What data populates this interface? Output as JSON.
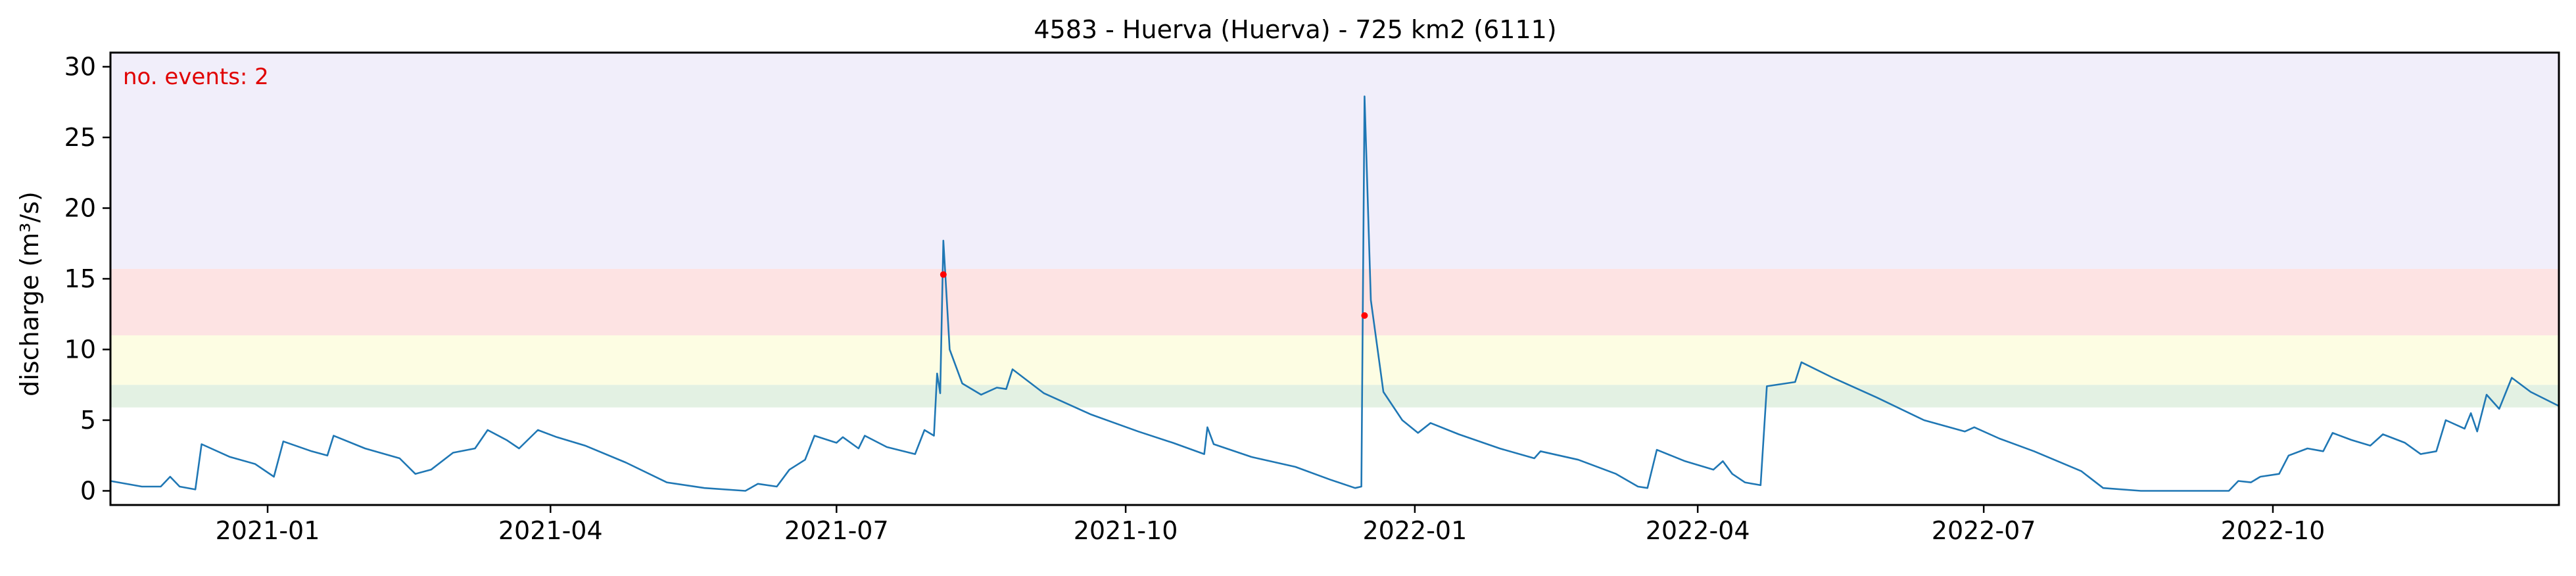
{
  "chart_data": {
    "type": "line",
    "title": "4583 - Huerva (Huerva) - 725 km2 (6111)",
    "xlabel": "",
    "ylabel": "discharge (m³/s)",
    "annotation": "no. events: 2",
    "xlim": [
      "2020-11-12",
      "2022-12-31"
    ],
    "ylim": [
      -1,
      31
    ],
    "x_ticks": [
      "2021-01-01",
      "2021-04-01",
      "2021-07-01",
      "2021-10-01",
      "2022-01-01",
      "2022-04-01",
      "2022-07-01",
      "2022-10-01"
    ],
    "x_tick_labels": [
      "2021-01",
      "2021-04",
      "2021-07",
      "2021-10",
      "2022-01",
      "2022-04",
      "2022-07",
      "2022-10"
    ],
    "y_ticks": [
      0,
      5,
      10,
      15,
      20,
      25,
      30
    ],
    "y_tick_labels": [
      "0",
      "5",
      "10",
      "15",
      "20",
      "25",
      "30"
    ],
    "grid": false,
    "threshold_bands": [
      {
        "from": 5.9,
        "to": 7.5,
        "color": "#e3f1e3"
      },
      {
        "from": 7.5,
        "to": 11.0,
        "color": "#fdfde3"
      },
      {
        "from": 11.0,
        "to": 15.7,
        "color": "#fde3e3"
      },
      {
        "from": 15.7,
        "to": 31,
        "color": "#f1eefa"
      }
    ],
    "series": [
      {
        "color": "#1f77b4",
        "points": [
          [
            "2020-11-12",
            0.7
          ],
          [
            "2020-11-22",
            0.3
          ],
          [
            "2020-11-28",
            0.3
          ],
          [
            "2020-12-01",
            1.0
          ],
          [
            "2020-12-04",
            0.3
          ],
          [
            "2020-12-09",
            0.1
          ],
          [
            "2020-12-11",
            3.3
          ],
          [
            "2020-12-20",
            2.4
          ],
          [
            "2020-12-28",
            1.9
          ],
          [
            "2021-01-03",
            1.0
          ],
          [
            "2021-01-06",
            3.5
          ],
          [
            "2021-01-15",
            2.8
          ],
          [
            "2021-01-20",
            2.5
          ],
          [
            "2021-01-22",
            3.9
          ],
          [
            "2021-02-01",
            3.0
          ],
          [
            "2021-02-12",
            2.3
          ],
          [
            "2021-02-17",
            1.2
          ],
          [
            "2021-02-22",
            1.5
          ],
          [
            "2021-03-01",
            2.7
          ],
          [
            "2021-03-08",
            3.0
          ],
          [
            "2021-03-12",
            4.3
          ],
          [
            "2021-03-18",
            3.6
          ],
          [
            "2021-03-22",
            3.0
          ],
          [
            "2021-03-28",
            4.3
          ],
          [
            "2021-04-03",
            3.8
          ],
          [
            "2021-04-12",
            3.2
          ],
          [
            "2021-04-25",
            2.0
          ],
          [
            "2021-05-08",
            0.6
          ],
          [
            "2021-05-20",
            0.2
          ],
          [
            "2021-06-02",
            0.0
          ],
          [
            "2021-06-06",
            0.5
          ],
          [
            "2021-06-12",
            0.3
          ],
          [
            "2021-06-16",
            1.5
          ],
          [
            "2021-06-21",
            2.2
          ],
          [
            "2021-06-24",
            3.9
          ],
          [
            "2021-07-01",
            3.4
          ],
          [
            "2021-07-03",
            3.8
          ],
          [
            "2021-07-08",
            3.0
          ],
          [
            "2021-07-10",
            3.9
          ],
          [
            "2021-07-17",
            3.1
          ],
          [
            "2021-07-26",
            2.6
          ],
          [
            "2021-07-29",
            4.3
          ],
          [
            "2021-08-01",
            3.9
          ],
          [
            "2021-08-02",
            8.3
          ],
          [
            "2021-08-03",
            6.9
          ],
          [
            "2021-08-04",
            17.7
          ],
          [
            "2021-08-06",
            10.0
          ],
          [
            "2021-08-10",
            7.6
          ],
          [
            "2021-08-16",
            6.8
          ],
          [
            "2021-08-21",
            7.3
          ],
          [
            "2021-08-24",
            7.2
          ],
          [
            "2021-08-26",
            8.6
          ],
          [
            "2021-09-05",
            6.9
          ],
          [
            "2021-09-20",
            5.4
          ],
          [
            "2021-10-05",
            4.2
          ],
          [
            "2021-10-16",
            3.4
          ],
          [
            "2021-10-26",
            2.6
          ],
          [
            "2021-10-27",
            4.5
          ],
          [
            "2021-10-29",
            3.3
          ],
          [
            "2021-11-10",
            2.4
          ],
          [
            "2021-11-24",
            1.7
          ],
          [
            "2021-12-05",
            0.8
          ],
          [
            "2021-12-13",
            0.2
          ],
          [
            "2021-12-15",
            0.3
          ],
          [
            "2021-12-16",
            27.9
          ],
          [
            "2021-12-18",
            13.5
          ],
          [
            "2021-12-22",
            7.0
          ],
          [
            "2021-12-28",
            5.0
          ],
          [
            "2022-01-02",
            4.1
          ],
          [
            "2022-01-06",
            4.8
          ],
          [
            "2022-01-15",
            4.0
          ],
          [
            "2022-01-28",
            3.0
          ],
          [
            "2022-02-08",
            2.3
          ],
          [
            "2022-02-10",
            2.8
          ],
          [
            "2022-02-22",
            2.2
          ],
          [
            "2022-03-06",
            1.2
          ],
          [
            "2022-03-13",
            0.3
          ],
          [
            "2022-03-16",
            0.2
          ],
          [
            "2022-03-19",
            2.9
          ],
          [
            "2022-03-28",
            2.1
          ],
          [
            "2022-04-06",
            1.5
          ],
          [
            "2022-04-09",
            2.1
          ],
          [
            "2022-04-12",
            1.2
          ],
          [
            "2022-04-16",
            0.6
          ],
          [
            "2022-04-21",
            0.4
          ],
          [
            "2022-04-23",
            7.4
          ],
          [
            "2022-05-02",
            7.7
          ],
          [
            "2022-05-04",
            9.1
          ],
          [
            "2022-05-14",
            8.0
          ],
          [
            "2022-05-28",
            6.6
          ],
          [
            "2022-06-12",
            5.0
          ],
          [
            "2022-06-25",
            4.2
          ],
          [
            "2022-06-28",
            4.5
          ],
          [
            "2022-07-06",
            3.7
          ],
          [
            "2022-07-17",
            2.8
          ],
          [
            "2022-08-01",
            1.4
          ],
          [
            "2022-08-08",
            0.2
          ],
          [
            "2022-08-20",
            0.0
          ],
          [
            "2022-09-17",
            0.0
          ],
          [
            "2022-09-20",
            0.7
          ],
          [
            "2022-09-24",
            0.6
          ],
          [
            "2022-09-27",
            1.0
          ],
          [
            "2022-10-03",
            1.2
          ],
          [
            "2022-10-06",
            2.5
          ],
          [
            "2022-10-12",
            3.0
          ],
          [
            "2022-10-17",
            2.8
          ],
          [
            "2022-10-20",
            4.1
          ],
          [
            "2022-10-26",
            3.6
          ],
          [
            "2022-11-01",
            3.2
          ],
          [
            "2022-11-05",
            4.0
          ],
          [
            "2022-11-12",
            3.4
          ],
          [
            "2022-11-17",
            2.6
          ],
          [
            "2022-11-22",
            2.8
          ],
          [
            "2022-11-25",
            5.0
          ],
          [
            "2022-12-01",
            4.4
          ],
          [
            "2022-12-03",
            5.5
          ],
          [
            "2022-12-05",
            4.2
          ],
          [
            "2022-12-08",
            6.8
          ],
          [
            "2022-12-12",
            5.8
          ],
          [
            "2022-12-16",
            8.0
          ],
          [
            "2022-12-22",
            7.0
          ],
          [
            "2022-12-31",
            6.0
          ]
        ]
      }
    ],
    "events": [
      {
        "date": "2021-08-04",
        "value": 15.3
      },
      {
        "date": "2021-12-16",
        "value": 12.4
      }
    ]
  }
}
